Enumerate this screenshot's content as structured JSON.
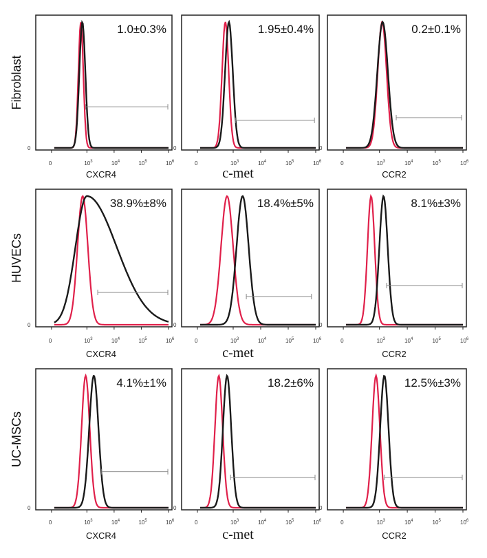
{
  "colors": {
    "isotype": "#e0204a",
    "stained": "#1a1a1a",
    "gate": "#888888",
    "frame": "#222222"
  },
  "chart_data": [
    {
      "type": "histogram",
      "row_label": "Fibroblast",
      "marker": "CXCR4",
      "percent": "1.0±0.3%",
      "x_ticks": [
        "0",
        "10",
        "3",
        "10",
        "4",
        "10",
        "5",
        "10",
        "6"
      ],
      "isotype": {
        "peak": 600,
        "width": 0.09
      },
      "stained": {
        "peak": 680,
        "width": 0.11
      },
      "gate_range": [
        900,
        1000000
      ],
      "gate_level": 0.32
    },
    {
      "type": "histogram",
      "row_label": "Fibroblast",
      "marker": "c-met",
      "percent": "1.95±0.4%",
      "x_ticks": [
        "0",
        "10",
        "3",
        "10",
        "4",
        "10",
        "5",
        "10",
        "6"
      ],
      "isotype": {
        "peak": 520,
        "width": 0.12
      },
      "stained": {
        "peak": 700,
        "width": 0.14
      },
      "gate_range": [
        1200,
        900000
      ],
      "gate_level": 0.22
    },
    {
      "type": "histogram",
      "row_label": "Fibroblast",
      "marker": "CCR2",
      "percent": "0.2±0.1%",
      "x_ticks": [
        "0",
        "10",
        "3",
        "10",
        "4",
        "10",
        "5",
        "10",
        "6"
      ],
      "isotype": {
        "peak": 1250,
        "width": 0.16
      },
      "stained": {
        "peak": 1300,
        "width": 0.19
      },
      "gate_range": [
        4000,
        900000
      ],
      "gate_level": 0.24
    },
    {
      "type": "histogram",
      "row_label": "HUVECs",
      "marker": "CXCR4",
      "percent": "38.9%±8%",
      "x_ticks": [
        "0",
        "10",
        "3",
        "10",
        "4",
        "10",
        "5",
        "10",
        "6"
      ],
      "isotype": {
        "peak": 700,
        "width": 0.19
      },
      "stained": {
        "peak": 1000,
        "width": 0.42
      },
      "gate_range": [
        2500,
        1000000
      ],
      "gate_level": 0.25
    },
    {
      "type": "histogram",
      "row_label": "HUVECs",
      "marker": "c-met",
      "percent": "18.4%±5%",
      "x_ticks": [
        "0",
        "10",
        "3",
        "10",
        "4",
        "10",
        "5",
        "10",
        "6"
      ],
      "isotype": {
        "peak": 600,
        "width": 0.22
      },
      "stained": {
        "peak": 2200,
        "width": 0.22
      },
      "gate_range": [
        3000,
        700000
      ],
      "gate_level": 0.22
    },
    {
      "type": "histogram",
      "row_label": "HUVECs",
      "marker": "CCR2",
      "percent": "8.1%±3%",
      "x_ticks": [
        "0",
        "10",
        "3",
        "10",
        "4",
        "10",
        "5",
        "10",
        "6"
      ],
      "isotype": {
        "peak": 500,
        "width": 0.13
      },
      "stained": {
        "peak": 1400,
        "width": 0.15
      },
      "gate_range": [
        1800,
        1000000
      ],
      "gate_level": 0.3
    },
    {
      "type": "histogram",
      "row_label": "UC-MSCs",
      "marker": "CXCR4",
      "percent": "4.1%±1%",
      "x_ticks": [
        "0",
        "10",
        "3",
        "10",
        "4",
        "10",
        "5",
        "10",
        "6"
      ],
      "isotype": {
        "peak": 900,
        "width": 0.15
      },
      "stained": {
        "peak": 1800,
        "width": 0.17
      },
      "gate_range": [
        3500,
        1000000
      ],
      "gate_level": 0.27
    },
    {
      "type": "histogram",
      "row_label": "UC-MSCs",
      "marker": "c-met",
      "percent": "18.2±6%",
      "x_ticks": [
        "0",
        "10",
        "3",
        "10",
        "4",
        "10",
        "5",
        "10",
        "6"
      ],
      "isotype": {
        "peak": 300,
        "width": 0.14
      },
      "stained": {
        "peak": 600,
        "width": 0.15
      },
      "gate_range": [
        800,
        1000000
      ],
      "gate_level": 0.23
    },
    {
      "type": "histogram",
      "row_label": "UC-MSCs",
      "marker": "CCR2",
      "percent": "12.5%±3%",
      "x_ticks": [
        "0",
        "10",
        "3",
        "10",
        "4",
        "10",
        "5",
        "10",
        "6"
      ],
      "isotype": {
        "peak": 750,
        "width": 0.14
      },
      "stained": {
        "peak": 1500,
        "width": 0.15
      },
      "gate_range": [
        1500,
        1000000
      ],
      "gate_level": 0.23
    }
  ],
  "row_labels": [
    "Fibroblast",
    "HUVECs",
    "UC-MSCs"
  ]
}
